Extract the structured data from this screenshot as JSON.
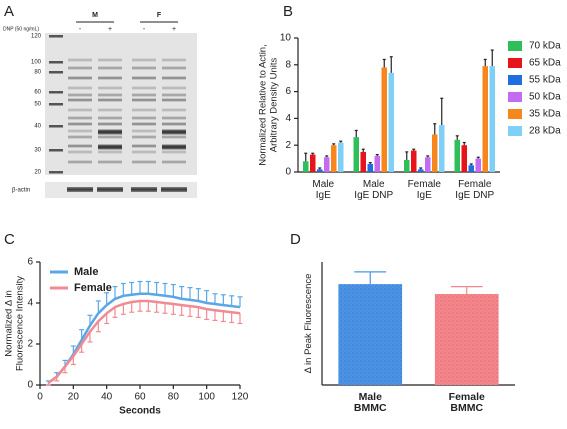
{
  "blot": {
    "panel": "A",
    "title": "DNP (50 ng/mL)",
    "groups": [
      "M",
      "F"
    ],
    "lanes": [
      "-",
      "+",
      "-",
      "+"
    ],
    "markers": [
      "120",
      "100",
      "80",
      "60",
      "50",
      "40",
      "30",
      "20"
    ],
    "loading": "β-actin"
  },
  "chart_data": [
    {
      "type": "bar",
      "panel": "B",
      "y_label": [
        "Normalized Relative to Actin,",
        "Arbitrary Density Units"
      ],
      "categories": [
        [
          "Male",
          "IgE"
        ],
        [
          "Male",
          "IgE DNP"
        ],
        [
          "Female",
          "IgE"
        ],
        [
          "Female",
          "IgE DNP"
        ]
      ],
      "ylim": [
        0,
        10
      ],
      "yticks": [
        0,
        2,
        4,
        6,
        8,
        10
      ],
      "series": [
        {
          "name": "70 kDa",
          "color": "#2fbf5a",
          "values": [
            0.8,
            2.6,
            0.9,
            2.4
          ],
          "errors": [
            0.6,
            0.5,
            0.6,
            0.3
          ]
        },
        {
          "name": "65 kDa",
          "color": "#e8141c",
          "values": [
            1.3,
            1.5,
            1.6,
            2.0
          ],
          "errors": [
            0.1,
            0.2,
            0.1,
            0.2
          ]
        },
        {
          "name": "55 kDa",
          "color": "#1f6fe0",
          "values": [
            0.2,
            0.6,
            0.2,
            0.5
          ],
          "errors": [
            0.1,
            0.1,
            0.1,
            0.1
          ]
        },
        {
          "name": "50 kDa",
          "color": "#c36cf0",
          "values": [
            1.1,
            1.2,
            1.1,
            1.0
          ],
          "errors": [
            0.1,
            0.1,
            0.1,
            0.1
          ]
        },
        {
          "name": "35 kDa",
          "color": "#f7861c",
          "values": [
            2.0,
            7.8,
            2.8,
            7.9
          ],
          "errors": [
            0.1,
            0.6,
            0.8,
            0.5
          ]
        },
        {
          "name": "28 kDa",
          "color": "#7fd0f7",
          "values": [
            2.2,
            7.4,
            3.5,
            7.9
          ],
          "errors": [
            0.1,
            1.2,
            2.0,
            1.2
          ]
        }
      ],
      "legend": "right"
    },
    {
      "type": "line",
      "panel": "C",
      "x_label": "Seconds",
      "y_label": [
        "Normalized Δ in",
        "Fluorescence Intensity"
      ],
      "x": [
        5,
        10,
        15,
        20,
        25,
        30,
        35,
        40,
        45,
        50,
        55,
        60,
        65,
        70,
        75,
        80,
        85,
        90,
        95,
        100,
        105,
        110,
        115,
        120
      ],
      "xlim": [
        0,
        120
      ],
      "xticks": [
        0,
        20,
        40,
        60,
        80,
        100,
        120
      ],
      "ylim": [
        0,
        6
      ],
      "yticks": [
        0,
        2,
        4,
        6
      ],
      "series": [
        {
          "name": "Male",
          "color": "#5aa7e8",
          "error_side": "up",
          "values": [
            0.1,
            0.4,
            0.9,
            1.5,
            2.2,
            2.9,
            3.5,
            3.9,
            4.2,
            4.35,
            4.4,
            4.45,
            4.45,
            4.4,
            4.35,
            4.3,
            4.2,
            4.15,
            4.1,
            4.0,
            3.95,
            3.9,
            3.85,
            3.8
          ],
          "errors": [
            0.1,
            0.2,
            0.3,
            0.4,
            0.5,
            0.5,
            0.6,
            0.6,
            0.6,
            0.6,
            0.6,
            0.6,
            0.6,
            0.6,
            0.6,
            0.6,
            0.6,
            0.6,
            0.6,
            0.6,
            0.5,
            0.5,
            0.5,
            0.5
          ]
        },
        {
          "name": "Female",
          "color": "#f28a93",
          "error_side": "down",
          "values": [
            0.1,
            0.4,
            0.9,
            1.4,
            2.0,
            2.6,
            3.1,
            3.5,
            3.8,
            3.95,
            4.05,
            4.1,
            4.1,
            4.05,
            4.0,
            3.95,
            3.9,
            3.85,
            3.8,
            3.7,
            3.65,
            3.6,
            3.55,
            3.5
          ],
          "errors": [
            0.1,
            0.2,
            0.3,
            0.4,
            0.4,
            0.5,
            0.5,
            0.5,
            0.5,
            0.5,
            0.5,
            0.5,
            0.5,
            0.5,
            0.5,
            0.5,
            0.5,
            0.5,
            0.5,
            0.5,
            0.5,
            0.5,
            0.5,
            0.5
          ]
        }
      ],
      "legend": "upper left"
    },
    {
      "type": "bar",
      "panel": "D",
      "y_label": [
        "Δ in Peak Fluorescence"
      ],
      "categories": [
        [
          "Male",
          "BMMC"
        ],
        [
          "Female",
          "BMMC"
        ]
      ],
      "ylim": [
        0,
        5
      ],
      "yticks": [],
      "series": [
        {
          "colors": [
            "#4a93e6",
            "#f7858b"
          ],
          "values": [
            4.1,
            3.7
          ],
          "errors": [
            0.5,
            0.3
          ]
        }
      ]
    }
  ]
}
